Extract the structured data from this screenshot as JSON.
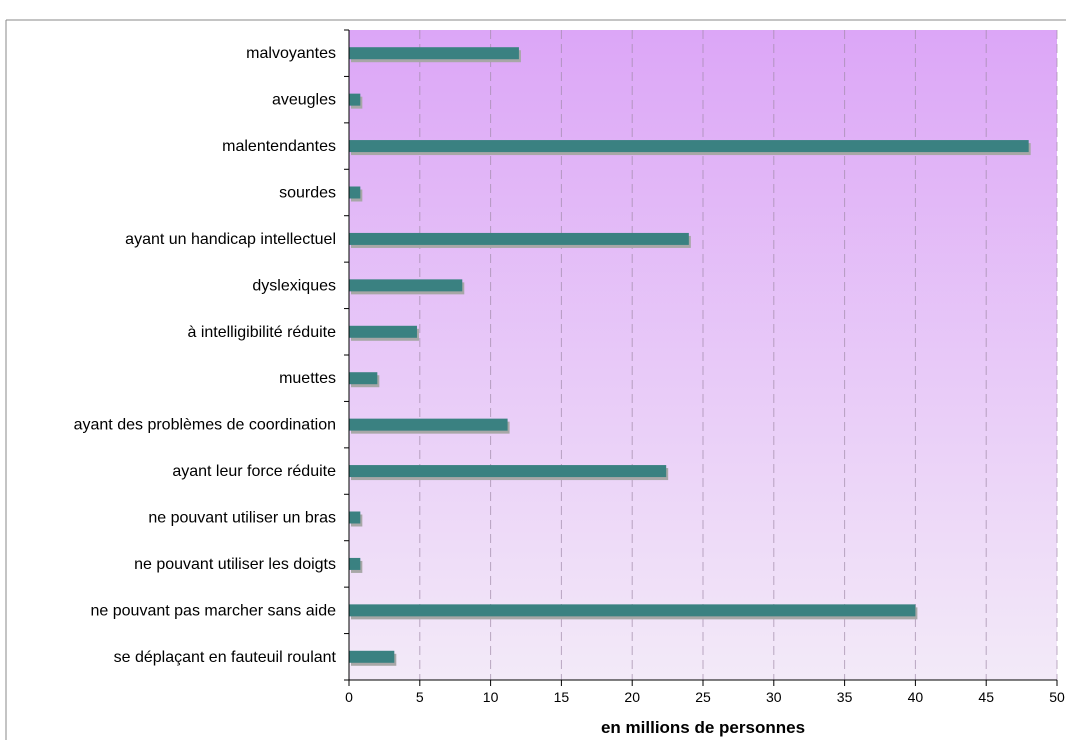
{
  "chart_data": {
    "type": "bar",
    "orientation": "horizontal",
    "xlabel": "en millions de personnes",
    "ylabel": "",
    "xlim": [
      0,
      50
    ],
    "xticks": [
      0,
      5,
      10,
      15,
      20,
      25,
      30,
      35,
      40,
      45,
      50
    ],
    "grid": "vertical dashed",
    "legend": "none",
    "colors": {
      "bar": "#3a8181",
      "bar_shadow": "#a7a7a7",
      "background_top": "#dca6f7",
      "background_bottom": "#f3eaf8",
      "grid": "#a08aa8"
    },
    "categories": [
      "malvoyantes",
      "aveugles",
      "malentendantes",
      "sourdes",
      "ayant un handicap intellectuel",
      "dyslexiques",
      "à intelligibilité réduite",
      "muettes",
      "ayant des problèmes de coordination",
      "ayant leur force réduite",
      "ne pouvant utiliser un bras",
      "ne pouvant utiliser les doigts",
      "ne pouvant pas marcher sans aide",
      "se déplaçant en fauteuil roulant"
    ],
    "values": [
      12,
      0.8,
      48,
      0.8,
      24,
      8,
      4.8,
      2,
      11.2,
      22.4,
      0.8,
      0.8,
      40,
      3.2
    ]
  }
}
